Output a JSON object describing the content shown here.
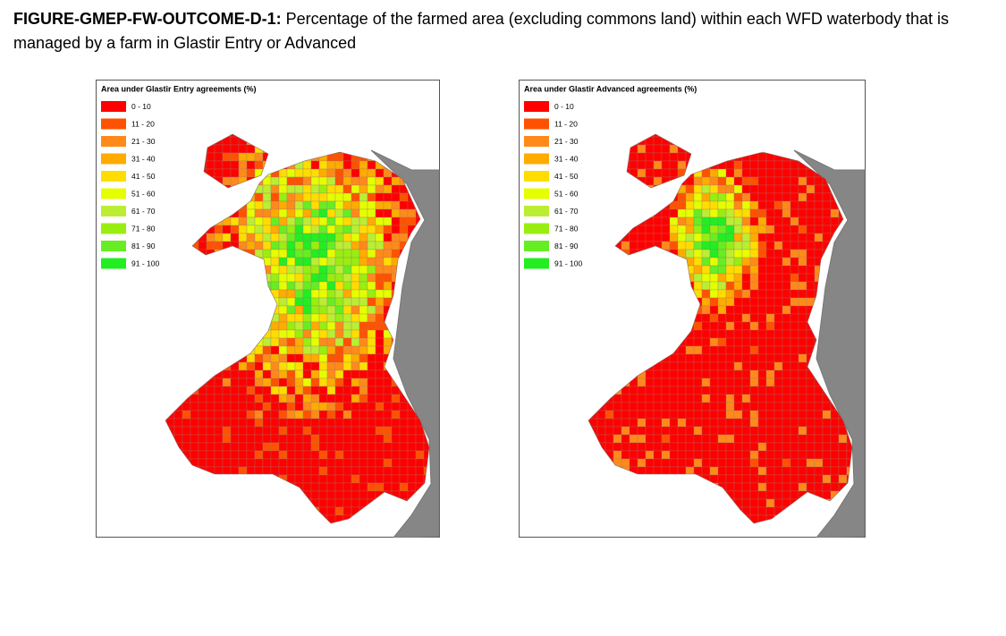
{
  "caption": {
    "label": "FIGURE-GMEP-FW-OUTCOME-D-1:",
    "text": "Percentage of the farmed area (excluding commons land) within each WFD waterbody that is managed by a farm in Glastir Entry or Advanced"
  },
  "maps": [
    {
      "legend": {
        "title": "Area under Glastir Entry agreements (%)",
        "items": [
          {
            "label": "0 - 10",
            "color": "#ff0000"
          },
          {
            "label": "11 - 20",
            "color": "#ff5200"
          },
          {
            "label": "21 - 30",
            "color": "#ff8a1a"
          },
          {
            "label": "31 - 40",
            "color": "#ffab00"
          },
          {
            "label": "41 - 50",
            "color": "#ffdd00"
          },
          {
            "label": "51 - 60",
            "color": "#e5ff00"
          },
          {
            "label": "61 - 70",
            "color": "#bbee33"
          },
          {
            "label": "71 - 80",
            "color": "#99ee11"
          },
          {
            "label": "81 - 90",
            "color": "#66ee22"
          },
          {
            "label": "91 - 100",
            "color": "#22ee22"
          }
        ]
      }
    },
    {
      "legend": {
        "title": "Area under Glastir Advanced agreements (%)",
        "items": [
          {
            "label": "0 - 10",
            "color": "#ff0000"
          },
          {
            "label": "11 - 20",
            "color": "#ff5200"
          },
          {
            "label": "21 - 30",
            "color": "#ff8a1a"
          },
          {
            "label": "31 - 40",
            "color": "#ffab00"
          },
          {
            "label": "41 - 50",
            "color": "#ffdd00"
          },
          {
            "label": "51 - 60",
            "color": "#e5ff00"
          },
          {
            "label": "61 - 70",
            "color": "#bbee33"
          },
          {
            "label": "71 - 80",
            "color": "#99ee11"
          },
          {
            "label": "81 - 90",
            "color": "#66ee22"
          },
          {
            "label": "91 - 100",
            "color": "#22ee22"
          }
        ]
      }
    }
  ]
}
